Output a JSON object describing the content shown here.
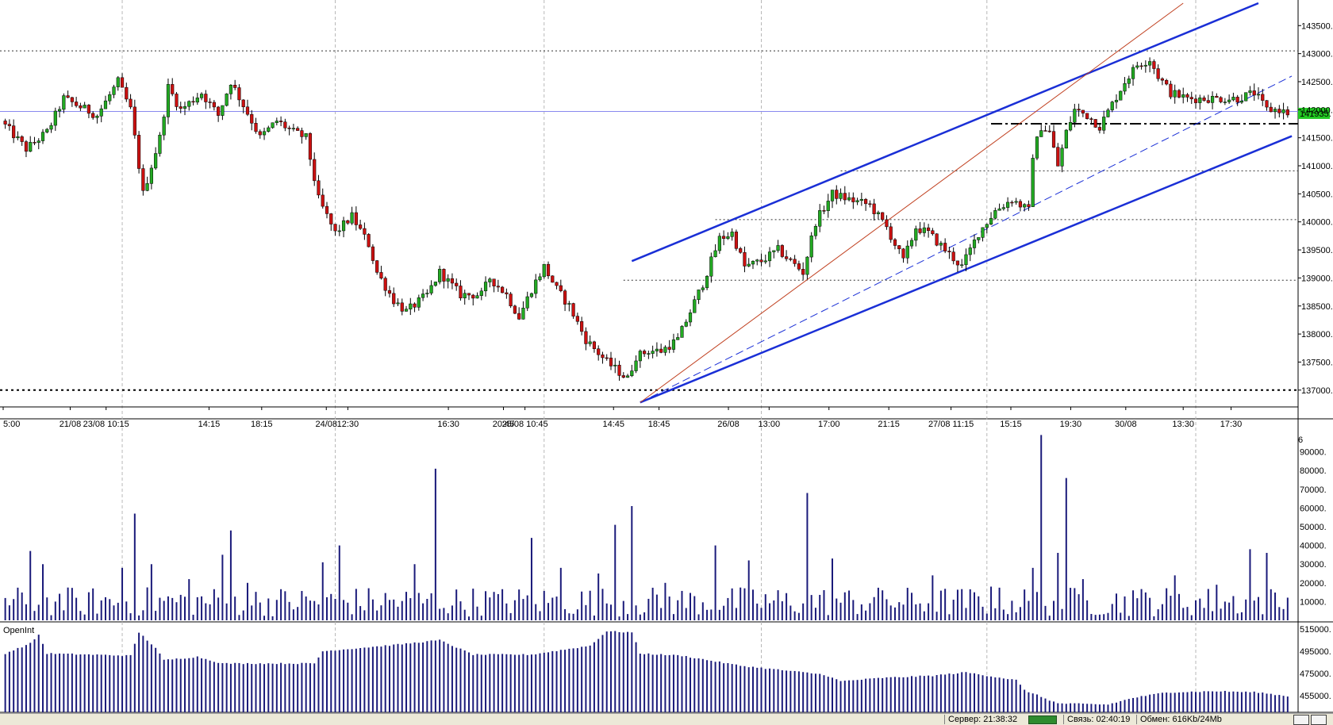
{
  "chart_data": [
    {
      "type": "candlestick",
      "panel": "price",
      "title": "",
      "ylim": [
        136700,
        143900
      ],
      "yticks": [
        137000,
        137500,
        138000,
        138500,
        139000,
        139500,
        140000,
        140500,
        141000,
        141500,
        142000,
        142500,
        143000,
        143500
      ],
      "ytick_labels": [
        "137000.",
        "137500.",
        "138000.",
        "138500.",
        "139000.",
        "139500.",
        "140000.",
        "140500.",
        "141000.",
        "141500.",
        "142000.",
        "142500.",
        "143000.",
        "143500."
      ],
      "last_price_label": "141935.",
      "last_price": 141935,
      "xtick_labels": [
        "5:00",
        "21/08",
        "23/08 10:15",
        "14:15",
        "18:15",
        "24/08",
        "12:30",
        "16:30",
        "20:45",
        "25/08 10:45",
        "14:45",
        "18:45",
        "26/08",
        "13:00",
        "17:00",
        "21:15",
        "27/08 11:15",
        "15:15",
        "19:30",
        "30/08",
        "13:30",
        "17:30"
      ],
      "day_separator_labels": [
        "21/08",
        "24/08",
        "25/08 10:45",
        "26/08",
        "27/08 11:15",
        "30/08"
      ],
      "path": [
        [
          0,
          141800
        ],
        [
          6,
          141300
        ],
        [
          11,
          141600
        ],
        [
          15,
          142200
        ],
        [
          23,
          141900
        ],
        [
          28,
          142500
        ],
        [
          31,
          142000
        ],
        [
          34,
          140500
        ],
        [
          38,
          141500
        ],
        [
          40,
          142400
        ],
        [
          43,
          142000
        ],
        [
          48,
          142300
        ],
        [
          52,
          141900
        ],
        [
          55,
          142500
        ],
        [
          60,
          141800
        ],
        [
          62,
          141500
        ],
        [
          66,
          141800
        ],
        [
          70,
          141600
        ],
        [
          73,
          141500
        ],
        [
          76,
          140400
        ],
        [
          80,
          139800
        ],
        [
          84,
          140100
        ],
        [
          88,
          139600
        ],
        [
          90,
          139100
        ],
        [
          94,
          138600
        ],
        [
          97,
          138400
        ],
        [
          102,
          138700
        ],
        [
          105,
          139100
        ],
        [
          110,
          138700
        ],
        [
          115,
          138700
        ],
        [
          117,
          139000
        ],
        [
          121,
          138700
        ],
        [
          124,
          138300
        ],
        [
          127,
          138800
        ],
        [
          130,
          139200
        ],
        [
          133,
          138800
        ],
        [
          136,
          138500
        ],
        [
          140,
          137900
        ],
        [
          145,
          137500
        ],
        [
          150,
          137200
        ],
        [
          152,
          137600
        ],
        [
          155,
          137700
        ],
        [
          158,
          137700
        ],
        [
          162,
          137900
        ],
        [
          165,
          138400
        ],
        [
          168,
          138900
        ],
        [
          172,
          139700
        ],
        [
          175,
          139800
        ],
        [
          178,
          139200
        ],
        [
          182,
          139300
        ],
        [
          186,
          139500
        ],
        [
          189,
          139300
        ],
        [
          192,
          139100
        ],
        [
          195,
          140000
        ],
        [
          199,
          140500
        ],
        [
          203,
          140400
        ],
        [
          208,
          140300
        ],
        [
          212,
          139900
        ],
        [
          216,
          139300
        ],
        [
          219,
          139900
        ],
        [
          222,
          139800
        ],
        [
          226,
          139500
        ],
        [
          230,
          139200
        ],
        [
          234,
          139800
        ],
        [
          238,
          140200
        ],
        [
          242,
          140400
        ],
        [
          246,
          140200
        ],
        [
          247,
          141200
        ],
        [
          249,
          141700
        ],
        [
          251,
          141600
        ],
        [
          253,
          141000
        ],
        [
          255,
          141600
        ],
        [
          257,
          142000
        ],
        [
          260,
          141900
        ],
        [
          263,
          141700
        ],
        [
          266,
          142100
        ],
        [
          269,
          142500
        ],
        [
          272,
          142800
        ],
        [
          275,
          142900
        ],
        [
          277,
          142600
        ],
        [
          280,
          142300
        ],
        [
          284,
          142200
        ],
        [
          288,
          142200
        ],
        [
          292,
          142200
        ],
        [
          296,
          142200
        ],
        [
          300,
          142300
        ],
        [
          303,
          142000
        ],
        [
          306,
          142000
        ],
        [
          308,
          141935
        ]
      ],
      "annotations": {
        "horizontal_lines": [
          143050,
          141970,
          137000,
          141750,
          140910,
          140040,
          138960
        ],
        "channel": {
          "upper": [
            [
              150,
              139300
            ],
            [
              300,
              143900
            ]
          ],
          "lower": [
            [
              152,
              136780
            ],
            [
              308,
              141530
            ]
          ]
        },
        "median_line": [
          [
            152,
            136780
          ],
          [
            308,
            142600
          ]
        ],
        "fan_line": [
          [
            152,
            136780
          ],
          [
            282,
            143900
          ]
        ]
      }
    },
    {
      "type": "bar",
      "panel": "volume",
      "title": "",
      "ylim": [
        0,
        100000
      ],
      "ytick_labels": [
        "10000.",
        "20000.",
        "30000.",
        "40000.",
        "50000.",
        "60000.",
        "70000.",
        "80000.",
        "90000."
      ],
      "yticks": [
        10000,
        20000,
        30000,
        40000,
        50000,
        60000,
        70000,
        80000,
        90000
      ],
      "top_label": "6",
      "spikes": [
        [
          1,
          8000
        ],
        [
          6,
          37000
        ],
        [
          9,
          30000
        ],
        [
          12,
          10000
        ],
        [
          18,
          5000
        ],
        [
          28,
          28000
        ],
        [
          31,
          57000
        ],
        [
          35,
          30000
        ],
        [
          44,
          22000
        ],
        [
          52,
          35000
        ],
        [
          54,
          48000
        ],
        [
          58,
          20000
        ],
        [
          76,
          31000
        ],
        [
          80,
          40000
        ],
        [
          98,
          30000
        ],
        [
          103,
          81000
        ],
        [
          118,
          14000
        ],
        [
          126,
          44000
        ],
        [
          133,
          28000
        ],
        [
          142,
          25000
        ],
        [
          146,
          51000
        ],
        [
          150,
          61000
        ],
        [
          158,
          20000
        ],
        [
          170,
          40000
        ],
        [
          178,
          32000
        ],
        [
          192,
          68000
        ],
        [
          198,
          33000
        ],
        [
          210,
          16000
        ],
        [
          222,
          24000
        ],
        [
          236,
          18000
        ],
        [
          246,
          28000
        ],
        [
          248,
          99000
        ],
        [
          252,
          36000
        ],
        [
          254,
          76000
        ],
        [
          258,
          22000
        ],
        [
          270,
          16000
        ],
        [
          280,
          24000
        ],
        [
          290,
          19000
        ],
        [
          298,
          38000
        ],
        [
          302,
          36000
        ],
        [
          306,
          6000
        ]
      ]
    },
    {
      "type": "bar",
      "panel": "open_interest",
      "title": "OpenInt",
      "ylim": [
        440000,
        520000
      ],
      "ytick_labels": [
        "455000.",
        "475000.",
        "495000.",
        "515000."
      ],
      "yticks": [
        455000,
        475000,
        495000,
        515000
      ],
      "profile": [
        [
          0,
          493000
        ],
        [
          6,
          502000
        ],
        [
          8,
          510000
        ],
        [
          10,
          493000
        ],
        [
          30,
          491000
        ],
        [
          32,
          512000
        ],
        [
          36,
          498000
        ],
        [
          38,
          487000
        ],
        [
          46,
          490000
        ],
        [
          52,
          484000
        ],
        [
          64,
          484000
        ],
        [
          74,
          484000
        ],
        [
          76,
          495000
        ],
        [
          94,
          501000
        ],
        [
          104,
          505000
        ],
        [
          112,
          492000
        ],
        [
          126,
          492000
        ],
        [
          140,
          500000
        ],
        [
          144,
          513000
        ],
        [
          150,
          512000
        ],
        [
          152,
          493000
        ],
        [
          162,
          491000
        ],
        [
          176,
          482000
        ],
        [
          196,
          474000
        ],
        [
          200,
          468000
        ],
        [
          210,
          471000
        ],
        [
          222,
          473000
        ],
        [
          230,
          476000
        ],
        [
          242,
          469000
        ],
        [
          244,
          460000
        ],
        [
          252,
          448000
        ],
        [
          264,
          447000
        ],
        [
          270,
          453000
        ],
        [
          278,
          458000
        ],
        [
          290,
          459000
        ],
        [
          300,
          458000
        ],
        [
          308,
          454000
        ]
      ]
    }
  ],
  "status_bar": {
    "server_time": "Сервер: 21:38:32",
    "connection_time": "Связь: 02:40:19",
    "traffic": "Обмен: 616Kb/24Mb"
  },
  "colors": {
    "up_candle": "#22aa22",
    "down_candle": "#cc1111",
    "channel": "#1a2fd6",
    "fan": "#c04020",
    "volume_bars": "#1a1a7a",
    "last_price_box": "#22cc22",
    "grid": "#b8b8b8"
  }
}
